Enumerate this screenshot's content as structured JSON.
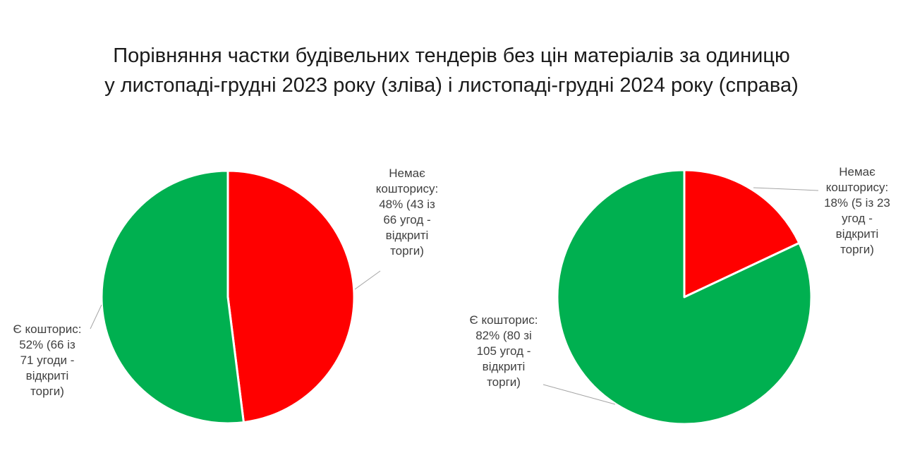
{
  "title_lines": [
    "Порівняння частки будівельних тендерів без цін матеріалів за одиницю",
    "у листопаді-грудні 2023 року (зліва) і листопаді-грудні 2024 року (справа)"
  ],
  "colors": {
    "no_estimate": "#ff0000",
    "has_estimate": "#00b050",
    "leader": "#a6a6a6",
    "text": "#404040"
  },
  "chart_data": [
    {
      "type": "pie",
      "period": "листопад-грудень 2023",
      "slices": [
        {
          "category": "Немає кошторису",
          "value": 48,
          "color": "#ff0000",
          "label_lines": [
            "Немає",
            "кошторису:",
            "48% (43 із",
            "66 угод -",
            "відкриті",
            "торги)"
          ]
        },
        {
          "category": "Є кошторис",
          "value": 52,
          "color": "#00b050",
          "label_lines": [
            "Є кошторис:",
            "52% (66 із",
            "71 угоди -",
            "відкриті",
            "торги)"
          ]
        }
      ]
    },
    {
      "type": "pie",
      "period": "листопад-грудень 2024",
      "slices": [
        {
          "category": "Немає кошторису",
          "value": 18,
          "color": "#ff0000",
          "label_lines": [
            "Немає",
            "кошторису:",
            "18% (5 із 23",
            "угод -",
            "відкриті",
            "торги)"
          ]
        },
        {
          "category": "Є кошторис",
          "value": 82,
          "color": "#00b050",
          "label_lines": [
            "Є кошторис:",
            "82% (80 зі",
            "105 угод -",
            "відкриті",
            "торги)"
          ]
        }
      ]
    }
  ]
}
